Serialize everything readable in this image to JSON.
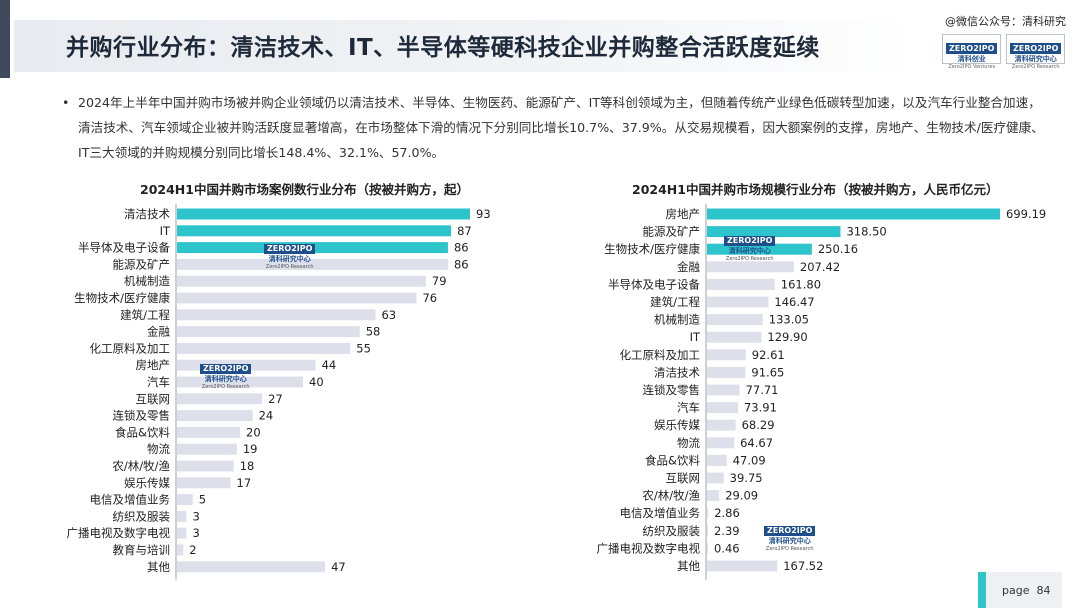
{
  "header": {
    "title": "并购行业分布：清洁技术、IT、半导体等硬科技企业并购整合活跃度延续",
    "watermark": "@微信公众号：清科研究"
  },
  "logos": [
    {
      "line1": "ZERO2IPO",
      "line2": "清科创业",
      "line3": "Zero2IPO Ventures"
    },
    {
      "line1": "ZERO2IPO",
      "line2": "清科研究中心",
      "line3": "Zero2IPO Research"
    }
  ],
  "chart_watermark": {
    "line1": "ZERO2IPO",
    "line2": "清科研究中心",
    "line3": "Zero2IPO Research"
  },
  "bullet": "2024年上半年中国并购市场被并购企业领域仍以清洁技术、半导体、生物医药、能源矿产、IT等科创领域为主，但随着传统产业绿色低碳转型加速，以及汽车行业整合加速，清洁技术、汽车领域企业被并购活跃度显著增高，在市场整体下滑的情况下分别同比增长10.7%、37.9%。从交易规模看，因大额案例的支撑，房地产、生物技术/医疗健康、IT三大领域的并购规模分别同比增长148.4%、32.1%、57.0%。",
  "colors": {
    "highlight": "#2ec4cc",
    "bar": "#dde0ea",
    "accent": "#3d4a5c"
  },
  "chart_data": [
    {
      "type": "bar",
      "orientation": "horizontal",
      "title": "2024H1中国并购市场案例数行业分布（按被并购方，起）",
      "categories": [
        "清洁技术",
        "IT",
        "半导体及电子设备",
        "能源及矿产",
        "机械制造",
        "生物技术/医疗健康",
        "建筑/工程",
        "金融",
        "化工原料及加工",
        "房地产",
        "汽车",
        "互联网",
        "连锁及零售",
        "食品&饮料",
        "物流",
        "农/林/牧/渔",
        "娱乐传媒",
        "电信及增值业务",
        "纺织及服装",
        "广播电视及数字电视",
        "教育与培训",
        "其他"
      ],
      "values": [
        93,
        87,
        86,
        86,
        79,
        76,
        63,
        58,
        55,
        44,
        40,
        27,
        24,
        20,
        19,
        18,
        17,
        5,
        3,
        3,
        2,
        47
      ],
      "highlighted": [
        0,
        1,
        2
      ],
      "xlim": [
        0,
        93
      ]
    },
    {
      "type": "bar",
      "orientation": "horizontal",
      "title": "2024H1中国并购市场规模行业分布（按被并购方，人民币亿元）",
      "categories": [
        "房地产",
        "能源及矿产",
        "生物技术/医疗健康",
        "金融",
        "半导体及电子设备",
        "建筑/工程",
        "机械制造",
        "IT",
        "化工原料及加工",
        "清洁技术",
        "连锁及零售",
        "汽车",
        "娱乐传媒",
        "物流",
        "食品&饮料",
        "互联网",
        "农/林/牧/渔",
        "电信及增值业务",
        "纺织及服装",
        "广播电视及数字电视",
        "其他"
      ],
      "values": [
        699.19,
        318.5,
        250.16,
        207.42,
        161.8,
        146.47,
        133.05,
        129.9,
        92.61,
        91.65,
        77.71,
        73.91,
        68.29,
        64.67,
        47.09,
        39.75,
        29.09,
        2.86,
        2.39,
        0.46,
        167.52
      ],
      "value_labels": [
        "699.19",
        "318.50",
        "250.16",
        "207.42",
        "161.80",
        "146.47",
        "133.05",
        "129.90",
        "92.61",
        "91.65",
        "77.71",
        "73.91",
        "68.29",
        "64.67",
        "47.09",
        "39.75",
        "29.09",
        "2.86",
        "2.39",
        "0.46",
        "167.52"
      ],
      "highlighted": [
        0,
        1,
        2
      ],
      "xlim": [
        0,
        699.19
      ]
    }
  ],
  "footer": {
    "page_label": "page",
    "page_number": "84"
  }
}
